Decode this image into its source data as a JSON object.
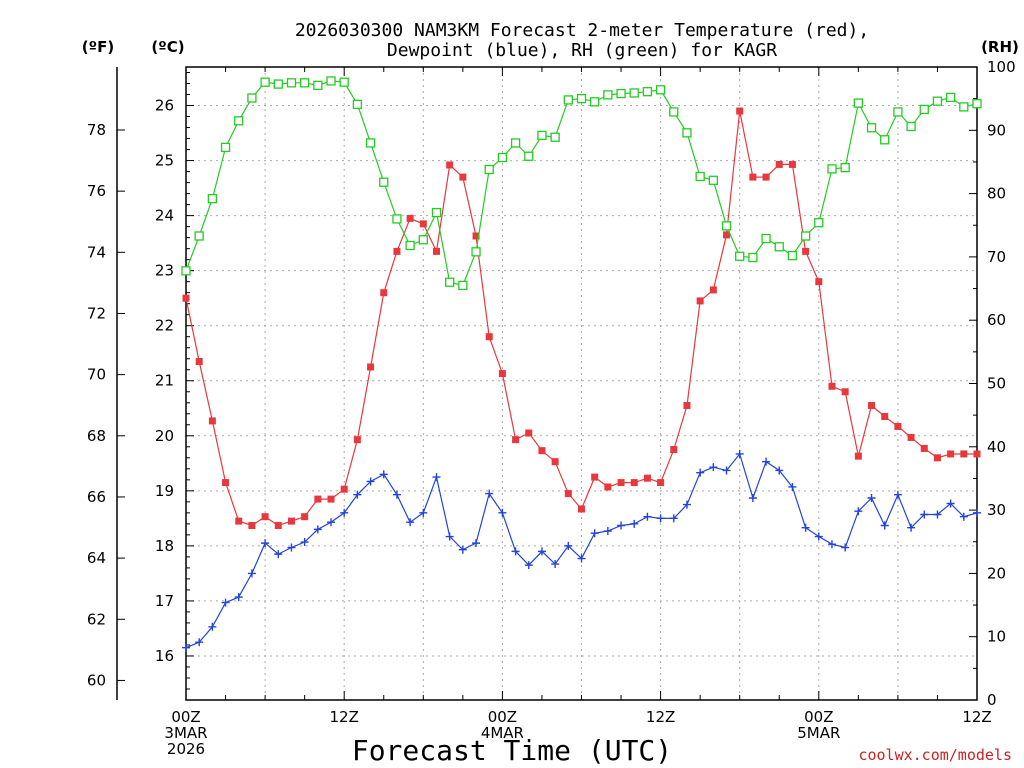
{
  "chart_data": {
    "type": "line",
    "title_line1": "2026030300 NAM3KM Forecast 2-meter Temperature (red),",
    "title_line2": "Dewpoint (blue), RH (green) for KAGR",
    "xlabel": "Forecast Time (UTC)",
    "credit": "coolwx.com/models",
    "units": {
      "fahrenheit": "(ºF)",
      "celsius": "(ºC)",
      "rh": "(RH)"
    },
    "x_hours_range": [
      0,
      60
    ],
    "x_ticks": [
      {
        "hour": 0,
        "lines": [
          "00Z",
          "3MAR",
          "2026"
        ]
      },
      {
        "hour": 12,
        "lines": [
          "12Z"
        ]
      },
      {
        "hour": 24,
        "lines": [
          "00Z",
          "4MAR"
        ]
      },
      {
        "hour": 36,
        "lines": [
          "12Z"
        ]
      },
      {
        "hour": 48,
        "lines": [
          "00Z",
          "5MAR"
        ]
      },
      {
        "hour": 60,
        "lines": [
          "12Z"
        ]
      }
    ],
    "celsius_ylim": [
      15.2,
      26.7
    ],
    "celsius_ticks": [
      "16",
      "17",
      "18",
      "19",
      "20",
      "21",
      "22",
      "23",
      "24",
      "25",
      "26"
    ],
    "fahrenheit_ticks": [
      "60",
      "62",
      "64",
      "66",
      "68",
      "70",
      "72",
      "74",
      "76",
      "78"
    ],
    "rh_ylim": [
      0,
      100
    ],
    "rh_ticks": [
      "0",
      "10",
      "20",
      "30",
      "40",
      "50",
      "60",
      "70",
      "80",
      "90",
      "100"
    ],
    "series": [
      {
        "name": "Temperature (red)",
        "axis": "celsius",
        "color": "#e8383d",
        "marker": "filled-square",
        "x": [
          0,
          1,
          2,
          3,
          4,
          5,
          6,
          7,
          8,
          9,
          10,
          11,
          12,
          13,
          14,
          15,
          16,
          17,
          18,
          19,
          20,
          21,
          22,
          23,
          24,
          25,
          26,
          27,
          28,
          29,
          30,
          31,
          32,
          33,
          34,
          35,
          36,
          37,
          38,
          39,
          40,
          41,
          42,
          43,
          44,
          45,
          46,
          47,
          48,
          49,
          50,
          51,
          52,
          53,
          54,
          55,
          56,
          57,
          58,
          59,
          60
        ],
        "values": [
          22.5,
          21.35,
          20.27,
          19.15,
          18.45,
          18.37,
          18.53,
          18.37,
          18.45,
          18.53,
          18.85,
          18.85,
          19.03,
          19.93,
          21.25,
          22.6,
          23.35,
          23.95,
          23.85,
          23.35,
          24.92,
          24.7,
          23.63,
          21.8,
          21.13,
          19.93,
          20.05,
          19.73,
          19.53,
          18.95,
          18.67,
          19.25,
          19.07,
          19.15,
          19.15,
          19.23,
          19.15,
          19.75,
          20.55,
          22.45,
          22.65,
          23.65,
          25.9,
          24.7,
          24.7,
          24.93,
          24.93,
          23.35,
          22.8,
          20.9,
          20.8,
          19.63,
          20.55,
          20.35,
          20.17,
          19.97,
          19.77,
          19.6,
          19.67,
          19.67,
          19.67
        ]
      },
      {
        "name": "Dewpoint (blue)",
        "axis": "celsius",
        "color": "#2244dd",
        "marker": "plus",
        "x": [
          0,
          1,
          2,
          3,
          4,
          5,
          6,
          7,
          8,
          9,
          10,
          11,
          12,
          13,
          14,
          15,
          16,
          17,
          18,
          19,
          20,
          21,
          22,
          23,
          24,
          25,
          26,
          27,
          28,
          29,
          30,
          31,
          32,
          33,
          34,
          35,
          36,
          37,
          38,
          39,
          40,
          41,
          42,
          43,
          44,
          45,
          46,
          47,
          48,
          49,
          50,
          51,
          52,
          53,
          54,
          55,
          56,
          57,
          58,
          59,
          60
        ],
        "values": [
          16.15,
          16.25,
          16.53,
          16.97,
          17.07,
          17.5,
          18.05,
          17.85,
          17.97,
          18.07,
          18.3,
          18.43,
          18.6,
          18.93,
          19.17,
          19.3,
          18.93,
          18.43,
          18.6,
          19.25,
          18.17,
          17.93,
          18.05,
          18.95,
          18.6,
          17.9,
          17.65,
          17.9,
          17.67,
          18.0,
          17.77,
          18.23,
          18.27,
          18.37,
          18.4,
          18.53,
          18.5,
          18.5,
          18.75,
          19.33,
          19.43,
          19.37,
          19.67,
          18.87,
          19.53,
          19.37,
          19.07,
          18.33,
          18.17,
          18.03,
          17.97,
          18.63,
          18.87,
          18.37,
          18.93,
          18.33,
          18.57,
          18.57,
          18.77,
          18.53,
          18.6
        ]
      },
      {
        "name": "RH (green)",
        "axis": "rh",
        "color": "#22cc22",
        "marker": "open-square",
        "x": [
          0,
          1,
          2,
          3,
          4,
          5,
          6,
          7,
          8,
          9,
          10,
          11,
          12,
          13,
          14,
          15,
          16,
          17,
          18,
          19,
          20,
          21,
          22,
          23,
          24,
          25,
          26,
          27,
          28,
          29,
          30,
          31,
          32,
          33,
          34,
          35,
          36,
          37,
          38,
          39,
          40,
          41,
          42,
          43,
          44,
          45,
          46,
          47,
          48,
          49,
          50,
          51,
          52,
          53,
          54,
          55,
          56,
          57,
          58,
          59,
          60
        ],
        "values": [
          67.8,
          73.3,
          79.2,
          87.3,
          91.5,
          95.1,
          97.6,
          97.3,
          97.5,
          97.5,
          97.1,
          97.8,
          97.6,
          94.1,
          88.0,
          81.8,
          76.0,
          71.8,
          72.7,
          77.0,
          66.0,
          65.5,
          70.8,
          83.8,
          85.7,
          88.0,
          85.9,
          89.2,
          88.9,
          94.8,
          95.0,
          94.5,
          95.6,
          95.8,
          95.9,
          96.1,
          96.4,
          92.9,
          89.6,
          82.7,
          82.1,
          74.9,
          70.1,
          69.9,
          72.9,
          71.6,
          70.2,
          73.3,
          75.4,
          83.9,
          84.1,
          94.3,
          90.4,
          88.5,
          92.9,
          90.6,
          93.3,
          94.6,
          95.2,
          93.7,
          94.2
        ]
      }
    ]
  }
}
